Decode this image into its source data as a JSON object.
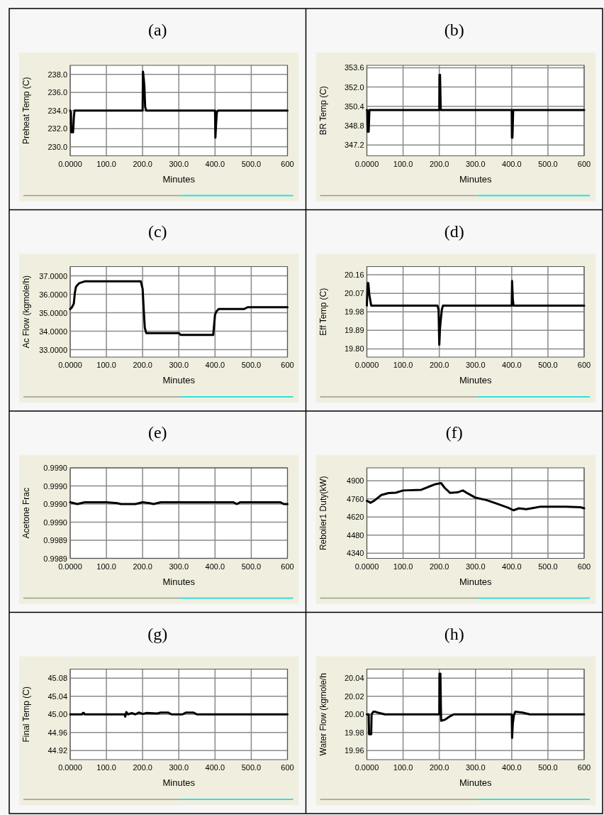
{
  "chart_data": [
    {
      "type": "line",
      "title": "(a)",
      "xlabel": "Minutes",
      "ylabel": "Preheat Temp (C)",
      "xlim": [
        0,
        600
      ],
      "xticks": [
        {
          "value": 0,
          "label": "0.0000"
        },
        {
          "value": 100,
          "label": "100.0"
        },
        {
          "value": 200,
          "label": "200.0"
        },
        {
          "value": 300,
          "label": "300.0"
        },
        {
          "value": 400,
          "label": "400.0"
        },
        {
          "value": 500,
          "label": "500.0"
        },
        {
          "value": 600,
          "label": "600"
        }
      ],
      "ylim": [
        229,
        239
      ],
      "yticks": [
        {
          "value": 230,
          "label": "230.0"
        },
        {
          "value": 232,
          "label": "232.0"
        },
        {
          "value": 234,
          "label": "234.0"
        },
        {
          "value": 236,
          "label": "236.0"
        },
        {
          "value": 238,
          "label": "238.0"
        }
      ],
      "grid": true,
      "series": [
        {
          "color": "#000000",
          "x": [
            0,
            2,
            3,
            8,
            10,
            12,
            200,
            201,
            203,
            205,
            207,
            210,
            400,
            401,
            403,
            405,
            408,
            600
          ],
          "values": [
            234,
            233.8,
            231.6,
            231.6,
            233.2,
            234,
            234,
            238.3,
            237.6,
            236.6,
            234.4,
            234,
            234,
            231,
            232.6,
            233.8,
            234,
            234
          ]
        }
      ]
    },
    {
      "type": "line",
      "title": "(b)",
      "xlabel": "Minutes",
      "ylabel": "BR Temp (C)",
      "xlim": [
        0,
        600
      ],
      "xticks": [
        {
          "value": 0,
          "label": "0.0000"
        },
        {
          "value": 100,
          "label": "100.0"
        },
        {
          "value": 200,
          "label": "200.0"
        },
        {
          "value": 300,
          "label": "300.0"
        },
        {
          "value": 400,
          "label": "400.0"
        },
        {
          "value": 500,
          "label": "500.0"
        },
        {
          "value": 600,
          "label": "600"
        }
      ],
      "ylim": [
        346.3,
        353.8
      ],
      "yticks": [
        {
          "value": 347.2,
          "label": "347.2"
        },
        {
          "value": 348.8,
          "label": "348.8"
        },
        {
          "value": 350.4,
          "label": "350.4"
        },
        {
          "value": 352,
          "label": "352.0"
        },
        {
          "value": 353.6,
          "label": "353.6"
        }
      ],
      "grid": true,
      "series": [
        {
          "color": "#000000",
          "x": [
            0,
            1,
            2,
            5,
            7,
            200,
            200.5,
            202,
            204,
            400,
            400.5,
            402,
            404,
            600
          ],
          "values": [
            350.1,
            350.1,
            348.3,
            348.3,
            350.1,
            350.1,
            353,
            353,
            350.1,
            350.1,
            347.8,
            347.8,
            350.1,
            350.1
          ]
        }
      ]
    },
    {
      "type": "line",
      "title": "(c)",
      "xlabel": "Minutes",
      "ylabel": "Ac Flow (kgmole/h)",
      "xlim": [
        0,
        600
      ],
      "xticks": [
        {
          "value": 0,
          "label": "0.0000"
        },
        {
          "value": 100,
          "label": "100.0"
        },
        {
          "value": 200,
          "label": "200.0"
        },
        {
          "value": 300,
          "label": "300.0"
        },
        {
          "value": 400,
          "label": "400.0"
        },
        {
          "value": 500,
          "label": "500.0"
        },
        {
          "value": 600,
          "label": "600"
        }
      ],
      "ylim": [
        32.6,
        37.5
      ],
      "yticks": [
        {
          "value": 33,
          "label": "33.0000"
        },
        {
          "value": 34,
          "label": "34.0000"
        },
        {
          "value": 35,
          "label": "35.0000"
        },
        {
          "value": 36,
          "label": "36.0000"
        },
        {
          "value": 37,
          "label": "37.0000"
        }
      ],
      "grid": true,
      "series": [
        {
          "color": "#000000",
          "x": [
            0,
            5,
            10,
            13,
            16,
            20,
            25,
            40,
            195,
            200,
            203,
            206,
            210,
            300,
            305,
            395,
            400,
            405,
            410,
            480,
            490,
            600
          ],
          "values": [
            35.2,
            35.3,
            35.5,
            36.1,
            36.4,
            36.5,
            36.6,
            36.7,
            36.7,
            36.3,
            35.2,
            34.2,
            33.9,
            33.9,
            33.8,
            33.8,
            34.9,
            35.1,
            35.2,
            35.2,
            35.3,
            35.3
          ]
        }
      ]
    },
    {
      "type": "line",
      "title": "(d)",
      "xlabel": "Minutes",
      "ylabel": "Eff Temp (C)",
      "xlim": [
        0,
        600
      ],
      "xticks": [
        {
          "value": 0,
          "label": "0.0000"
        },
        {
          "value": 100,
          "label": "100.0"
        },
        {
          "value": 200,
          "label": "200.0"
        },
        {
          "value": 300,
          "label": "300.0"
        },
        {
          "value": 400,
          "label": "400.0"
        },
        {
          "value": 500,
          "label": "500.0"
        },
        {
          "value": 600,
          "label": "600"
        }
      ],
      "ylim": [
        19.76,
        20.2
      ],
      "yticks": [
        {
          "value": 19.8,
          "label": "19.80"
        },
        {
          "value": 19.89,
          "label": "19.89"
        },
        {
          "value": 19.98,
          "label": "19.98"
        },
        {
          "value": 20.07,
          "label": "20.07"
        },
        {
          "value": 20.16,
          "label": "20.16"
        }
      ],
      "grid": true,
      "series": [
        {
          "color": "#000000",
          "x": [
            0,
            2,
            4,
            7,
            9,
            12,
            195,
            198,
            200,
            202,
            204,
            207,
            210,
            400,
            401,
            403,
            405,
            600
          ],
          "values": [
            20.01,
            20.12,
            20.12,
            20.06,
            20.04,
            20.01,
            20.01,
            19.99,
            19.82,
            19.9,
            19.94,
            19.99,
            20.01,
            20.01,
            20.13,
            20.04,
            20.01,
            20.01
          ]
        }
      ]
    },
    {
      "type": "line",
      "title": "(e)",
      "xlabel": "Minutes",
      "ylabel": "Acetone Frac",
      "xlim": [
        0,
        600
      ],
      "xticks": [
        {
          "value": 0,
          "label": "0.0000"
        },
        {
          "value": 100,
          "label": "100.0"
        },
        {
          "value": 200,
          "label": "200.0"
        },
        {
          "value": 300,
          "label": "300.0"
        },
        {
          "value": 400,
          "label": "400.0"
        },
        {
          "value": 500,
          "label": "500.0"
        },
        {
          "value": 600,
          "label": "600"
        }
      ],
      "ylim": [
        0.99891,
        0.99901
      ],
      "yticks": [
        {
          "value": 0.99891,
          "label": "0.9989"
        },
        {
          "value": 0.99893,
          "label": "0.9989"
        },
        {
          "value": 0.99895,
          "label": "0.9990"
        },
        {
          "value": 0.99897,
          "label": "0.9990"
        },
        {
          "value": 0.99899,
          "label": "0.9990"
        },
        {
          "value": 0.99901,
          "label": "0.9990"
        }
      ],
      "grid": true,
      "series": [
        {
          "color": "#000000",
          "x": [
            0,
            20,
            40,
            100,
            130,
            140,
            180,
            200,
            220,
            230,
            250,
            300,
            450,
            460,
            470,
            480,
            500,
            580,
            590,
            600
          ],
          "values": [
            0.998972,
            0.99897,
            0.998972,
            0.998972,
            0.998971,
            0.99897,
            0.99897,
            0.998972,
            0.998971,
            0.99897,
            0.998972,
            0.998972,
            0.998972,
            0.99897,
            0.998972,
            0.998972,
            0.998972,
            0.998972,
            0.99897,
            0.99897
          ]
        }
      ]
    },
    {
      "type": "line",
      "title": "(f)",
      "xlabel": "Minutes",
      "ylabel": "Reboiler1 Duty(kW)",
      "xlim": [
        0,
        600
      ],
      "xticks": [
        {
          "value": 0,
          "label": "0.0000"
        },
        {
          "value": 100,
          "label": "100.0"
        },
        {
          "value": 200,
          "label": "200.0"
        },
        {
          "value": 300,
          "label": "300.0"
        },
        {
          "value": 400,
          "label": "400.0"
        },
        {
          "value": 500,
          "label": "500.0"
        },
        {
          "value": 600,
          "label": "600"
        }
      ],
      "ylim": [
        4300,
        5000
      ],
      "yticks": [
        4340,
        4480,
        4620,
        4760,
        4900
      ],
      "grid": true,
      "series": [
        {
          "color": "#000000",
          "x": [
            0,
            10,
            20,
            40,
            60,
            80,
            100,
            150,
            170,
            190,
            205,
            215,
            230,
            250,
            265,
            280,
            300,
            330,
            360,
            390,
            405,
            420,
            440,
            460,
            480,
            500,
            550,
            590,
            600
          ],
          "values": [
            4745,
            4730,
            4745,
            4790,
            4805,
            4808,
            4825,
            4830,
            4853,
            4874,
            4882,
            4845,
            4806,
            4810,
            4825,
            4800,
            4769,
            4751,
            4722,
            4692,
            4672,
            4687,
            4680,
            4690,
            4700,
            4700,
            4700,
            4695,
            4687
          ]
        }
      ]
    },
    {
      "type": "line",
      "title": "(g)",
      "xlabel": "Minutes",
      "ylabel": "Final Temp (C)",
      "xlim": [
        0,
        600
      ],
      "xticks": [
        {
          "value": 0,
          "label": "0.0000"
        },
        {
          "value": 100,
          "label": "100.0"
        },
        {
          "value": 200,
          "label": "200.0"
        },
        {
          "value": 300,
          "label": "300.0"
        },
        {
          "value": 400,
          "label": "400.0"
        },
        {
          "value": 500,
          "label": "500.0"
        },
        {
          "value": 600,
          "label": "600"
        }
      ],
      "ylim": [
        44.9,
        45.1
      ],
      "yticks": [
        {
          "value": 44.92,
          "label": "44.92"
        },
        {
          "value": 44.96,
          "label": "44.96"
        },
        {
          "value": 45,
          "label": "45.00"
        },
        {
          "value": 45.04,
          "label": "45.04"
        },
        {
          "value": 45.08,
          "label": "45.08"
        }
      ],
      "grid": true,
      "series": [
        {
          "color": "#000000",
          "x": [
            0,
            33,
            35,
            38,
            40,
            150,
            152,
            155,
            160,
            170,
            180,
            190,
            200,
            210,
            240,
            250,
            270,
            280,
            310,
            320,
            340,
            350,
            600
          ],
          "values": [
            45,
            45,
            45.003,
            45.003,
            45,
            45,
            44.995,
            45.005,
            45,
            45.003,
            45,
            45.004,
            45.001,
            45.003,
            45.002,
            45.004,
            45.004,
            45,
            45,
            45.004,
            45.004,
            45,
            45
          ]
        }
      ]
    },
    {
      "type": "line",
      "title": "(h)",
      "xlabel": "Minutes",
      "ylabel": "Water Flow (kgmole/h",
      "xlim": [
        0,
        600
      ],
      "xticks": [
        {
          "value": 0,
          "label": "0.0000"
        },
        {
          "value": 100,
          "label": "100.0"
        },
        {
          "value": 200,
          "label": "200.0"
        },
        {
          "value": 300,
          "label": "300.0"
        },
        {
          "value": 400,
          "label": "400.0"
        },
        {
          "value": 500,
          "label": "500.0"
        },
        {
          "value": 600,
          "label": "600"
        }
      ],
      "ylim": [
        19.95,
        20.05
      ],
      "yticks": [
        {
          "value": 19.96,
          "label": "19.96"
        },
        {
          "value": 19.98,
          "label": "19.98"
        },
        {
          "value": 20,
          "label": "20.00"
        },
        {
          "value": 20.02,
          "label": "20.02"
        },
        {
          "value": 20.04,
          "label": "20.04"
        }
      ],
      "grid": true,
      "series": [
        {
          "color": "#000000",
          "x": [
            0,
            5,
            6,
            12,
            13,
            18,
            22,
            30,
            50,
            200,
            200.5,
            203,
            205,
            215,
            230,
            240,
            400,
            401,
            403,
            406,
            410,
            430,
            450,
            600
          ],
          "values": [
            20,
            20,
            19.978,
            19.978,
            20,
            20.003,
            20.003,
            20.002,
            20,
            20,
            20.045,
            20.045,
            19.993,
            19.994,
            19.998,
            20,
            20,
            19.974,
            19.99,
            19.999,
            20.003,
            20.002,
            20,
            20
          ]
        }
      ]
    }
  ]
}
